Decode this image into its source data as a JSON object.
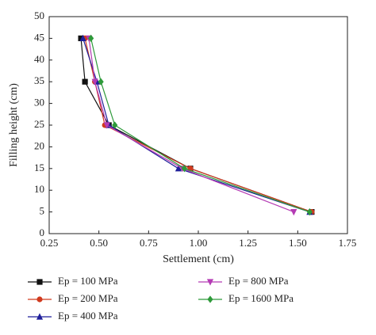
{
  "chart_data": {
    "type": "line",
    "xlabel": "Settlement (cm)",
    "ylabel": "Filling height (cm)",
    "xlim": [
      0.25,
      1.75
    ],
    "xticks": [
      0.25,
      {
        "value": 0.5,
        "label": "0.50"
      },
      0.75,
      {
        "value": 1,
        "label": "1.00"
      },
      1.25,
      {
        "value": 1.5,
        "label": "1.50"
      },
      1.75
    ],
    "ylim": [
      0,
      50
    ],
    "yticks": [
      0,
      5,
      10,
      15,
      20,
      25,
      30,
      35,
      40,
      45,
      50
    ],
    "series": [
      {
        "name": "Ep = 100 MPa",
        "color": "#111111",
        "marker": "square",
        "x": [
          0.41,
          0.43,
          0.55,
          0.96,
          1.57
        ],
        "values": [
          45,
          35,
          25,
          15,
          5
        ]
      },
      {
        "name": "Ep = 200 MPa",
        "color": "#d03a1e",
        "marker": "circle",
        "x": [
          0.43,
          0.48,
          0.53,
          0.96,
          1.57
        ],
        "values": [
          45,
          35,
          25,
          15,
          5
        ]
      },
      {
        "name": "Ep = 400 MPa",
        "color": "#1f1f9a",
        "marker": "triangle-up",
        "x": [
          0.42,
          0.49,
          0.55,
          0.9,
          1.56
        ],
        "values": [
          45,
          35,
          25,
          15,
          5
        ]
      },
      {
        "name": "Ep = 800 MPa",
        "color": "#b43bb4",
        "marker": "triangle-down",
        "x": [
          0.45,
          0.48,
          0.54,
          0.92,
          1.48
        ],
        "values": [
          45,
          35,
          25,
          15,
          5
        ]
      },
      {
        "name": "Ep = 1600 MPa",
        "color": "#2e9a3a",
        "marker": "diamond",
        "x": [
          0.46,
          0.51,
          0.58,
          0.93,
          1.56
        ],
        "values": [
          45,
          35,
          25,
          15,
          5
        ]
      }
    ]
  }
}
